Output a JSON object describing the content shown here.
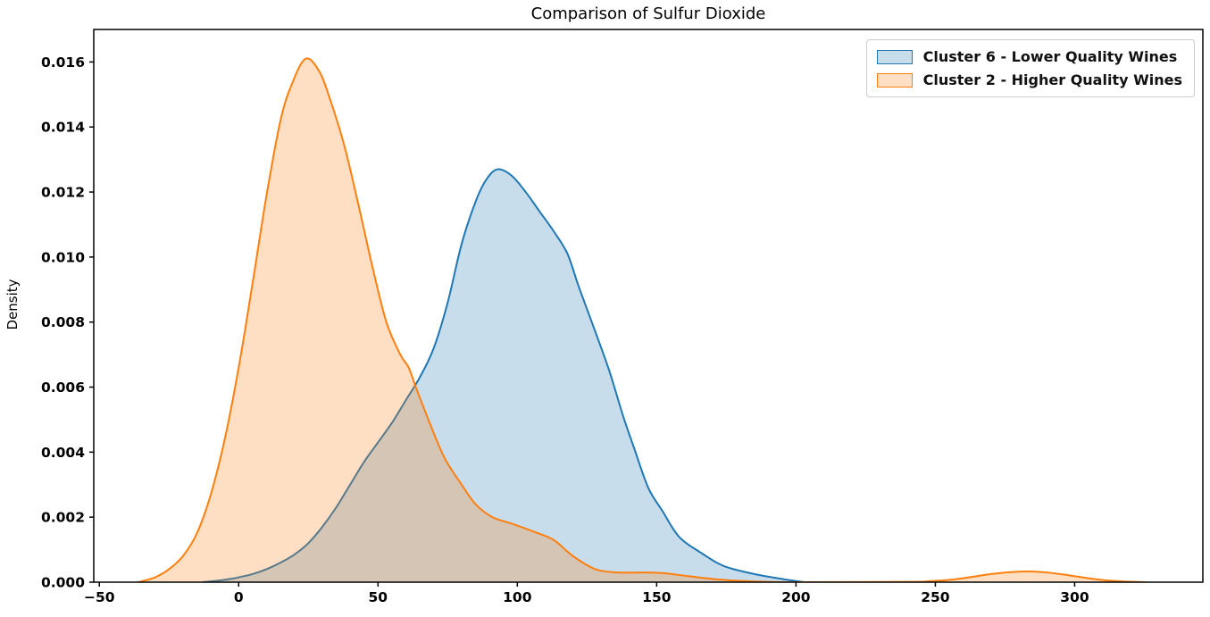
{
  "figure": {
    "background": "#ffffff",
    "text_color": "#000000"
  },
  "chart_data": {
    "type": "area",
    "subtype": "kde-density",
    "title": "Comparison of Sulfur Dioxide",
    "xlabel": "",
    "ylabel": "Density",
    "xlim": [
      -52,
      346
    ],
    "ylim": [
      0,
      0.017
    ],
    "grid": false,
    "legend_position": "upper right",
    "x_ticks": [
      -50,
      0,
      50,
      100,
      150,
      200,
      250,
      300
    ],
    "x_tick_labels": [
      "−50",
      "0",
      "50",
      "100",
      "150",
      "200",
      "250",
      "300"
    ],
    "y_ticks": [
      0,
      0.002,
      0.004,
      0.006,
      0.008,
      0.01,
      0.012,
      0.014,
      0.016
    ],
    "y_tick_labels": [
      "0.000",
      "0.002",
      "0.004",
      "0.006",
      "0.008",
      "0.010",
      "0.012",
      "0.014",
      "0.016"
    ],
    "series": [
      {
        "name": "Cluster 6 - Lower Quality Wines",
        "line_color": "#1f77b4",
        "fill_color": "rgba(31,119,180,0.25)",
        "peak": {
          "x": 93,
          "y": 0.0127
        },
        "points": [
          [
            -13,
            0
          ],
          [
            -8,
            4e-05
          ],
          [
            -3,
            0.0001
          ],
          [
            0,
            0.00015
          ],
          [
            5,
            0.00025
          ],
          [
            10,
            0.0004
          ],
          [
            15,
            0.0006
          ],
          [
            20,
            0.00085
          ],
          [
            25,
            0.0012
          ],
          [
            30,
            0.0017
          ],
          [
            35,
            0.0023
          ],
          [
            40,
            0.003
          ],
          [
            45,
            0.0037
          ],
          [
            50,
            0.0043
          ],
          [
            55,
            0.0049
          ],
          [
            60,
            0.0056
          ],
          [
            65,
            0.0063
          ],
          [
            70,
            0.0072
          ],
          [
            75,
            0.0086
          ],
          [
            80,
            0.0104
          ],
          [
            85,
            0.0117
          ],
          [
            89,
            0.0124
          ],
          [
            93,
            0.0127
          ],
          [
            98,
            0.0125
          ],
          [
            103,
            0.012
          ],
          [
            108,
            0.0114
          ],
          [
            113,
            0.0108
          ],
          [
            118,
            0.0101
          ],
          [
            122,
            0.0091
          ],
          [
            128,
            0.0077
          ],
          [
            133,
            0.0065
          ],
          [
            138,
            0.0051
          ],
          [
            142,
            0.0041
          ],
          [
            147,
            0.0029
          ],
          [
            152,
            0.0022
          ],
          [
            158,
            0.0014
          ],
          [
            166,
            0.0009
          ],
          [
            174,
            0.0005
          ],
          [
            185,
            0.00025
          ],
          [
            195,
            0.0001
          ],
          [
            203,
            0
          ]
        ]
      },
      {
        "name": "Cluster 2 - Higher Quality Wines",
        "line_color": "#ff7f0e",
        "fill_color": "rgba(255,127,14,0.25)",
        "peak": {
          "x": 24,
          "y": 0.0161
        },
        "points": [
          [
            -36,
            0
          ],
          [
            -30,
            0.00015
          ],
          [
            -25,
            0.0004
          ],
          [
            -20,
            0.0008
          ],
          [
            -15,
            0.0015
          ],
          [
            -10,
            0.0027
          ],
          [
            -5,
            0.0044
          ],
          [
            0,
            0.0066
          ],
          [
            5,
            0.0092
          ],
          [
            10,
            0.0119
          ],
          [
            15,
            0.0142
          ],
          [
            19,
            0.0153
          ],
          [
            24,
            0.0161
          ],
          [
            29,
            0.0157
          ],
          [
            33,
            0.0148
          ],
          [
            38,
            0.0134
          ],
          [
            43,
            0.0116
          ],
          [
            48,
            0.0097
          ],
          [
            53,
            0.008
          ],
          [
            58,
            0.007
          ],
          [
            61,
            0.0066
          ],
          [
            64,
            0.0059
          ],
          [
            69,
            0.0048
          ],
          [
            74,
            0.0038
          ],
          [
            80,
            0.003
          ],
          [
            85,
            0.0024
          ],
          [
            91,
            0.002
          ],
          [
            98,
            0.0018
          ],
          [
            106,
            0.00155
          ],
          [
            113,
            0.0013
          ],
          [
            120,
            0.0008
          ],
          [
            128,
            0.0004
          ],
          [
            136,
            0.0003
          ],
          [
            145,
            0.0003
          ],
          [
            152,
            0.00028
          ],
          [
            160,
            0.0002
          ],
          [
            170,
            0.0001
          ],
          [
            180,
            4e-05
          ],
          [
            190,
            1e-05
          ],
          [
            200,
            0
          ],
          [
            240,
            1e-05
          ],
          [
            248,
            3e-05
          ],
          [
            256,
            8e-05
          ],
          [
            263,
            0.00016
          ],
          [
            270,
            0.00025
          ],
          [
            277,
            0.00031
          ],
          [
            284,
            0.00033
          ],
          [
            291,
            0.00029
          ],
          [
            298,
            0.00021
          ],
          [
            305,
            0.00012
          ],
          [
            312,
            5e-05
          ],
          [
            318,
            2e-05
          ],
          [
            325,
            0
          ]
        ]
      }
    ]
  },
  "legend": {
    "items": [
      {
        "label": "Cluster 6 - Lower Quality Wines",
        "swatch_fill": "#c7ddec",
        "swatch_border": "#1f77b4"
      },
      {
        "label": "Cluster 2 - Higher Quality Wines",
        "swatch_fill": "#ffdfc3",
        "swatch_border": "#ff7f0e"
      }
    ]
  }
}
